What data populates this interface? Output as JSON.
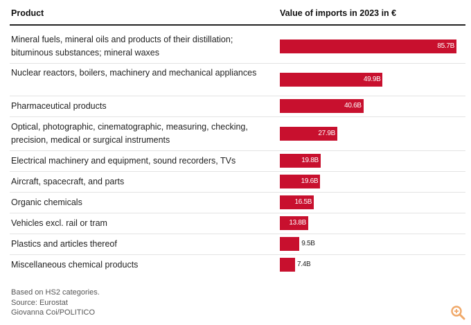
{
  "colors": {
    "bar": "#c8102e",
    "grid": "#e3e3e3",
    "zoom": "#f0a868"
  },
  "chart_data": {
    "type": "bar",
    "orientation": "horizontal",
    "column_headers": [
      "Product",
      "Value of imports in 2023 in €"
    ],
    "categories": [
      "Mineral fuels, mineral oils and products of their distillation; bituminous substances; mineral waxes",
      "Nuclear reactors, boilers, machinery and mechanical appliances",
      "Pharmaceutical products",
      "Optical, photographic, cinematographic, measuring, checking, precision, medical or surgical instruments",
      "Electrical machinery and equipment, sound recorders, TVs",
      "Aircraft, spacecraft, and parts",
      "Organic chemicals",
      "Vehicles excl. rail or tram",
      "Plastics and articles thereof",
      "Miscellaneous chemical products"
    ],
    "values": [
      85.7,
      49.9,
      40.6,
      27.9,
      19.8,
      19.6,
      16.5,
      13.8,
      9.5,
      7.4
    ],
    "value_labels": [
      "85.7B",
      "49.9B",
      "40.6B",
      "27.9B",
      "19.8B",
      "19.6B",
      "16.5B",
      "13.8B",
      "9.5B",
      "7.4B"
    ],
    "unit": "billion €",
    "xlim": [
      0,
      85.7
    ]
  },
  "footer": {
    "note": "Based on HS2 categories.",
    "source": "Source: Eurostat",
    "credit": "Giovanna Coi/POLITICO"
  },
  "icons": {
    "zoom": "zoom-in-icon"
  }
}
